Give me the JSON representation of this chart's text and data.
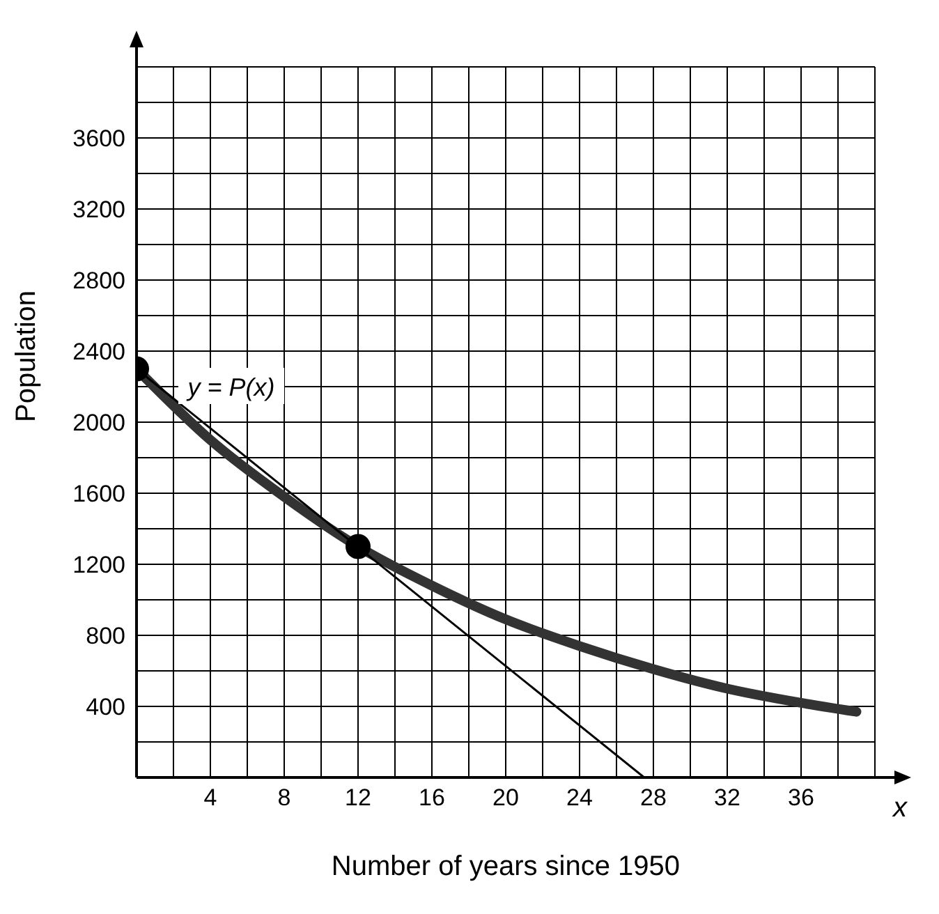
{
  "chart_data": {
    "type": "line",
    "xlabel": "Number of years since 1950",
    "ylabel": "Population",
    "xlim": [
      0,
      40
    ],
    "xticks": [
      {
        "value": 2,
        "label": null
      },
      4,
      {
        "value": 6,
        "label": null
      },
      8,
      {
        "value": 10,
        "label": null
      },
      12,
      {
        "value": 14,
        "label": null
      },
      16,
      {
        "value": 18,
        "label": null
      },
      20,
      {
        "value": 22,
        "label": null
      },
      24,
      {
        "value": 26,
        "label": null
      },
      28,
      {
        "value": 30,
        "label": null
      },
      32,
      {
        "value": 34,
        "label": null
      },
      36,
      {
        "value": 38,
        "label": null
      },
      {
        "value": 40,
        "label": null
      }
    ],
    "ylim": [
      0,
      4000
    ],
    "yticks": [
      {
        "value": 200,
        "label": null
      },
      400,
      {
        "value": 600,
        "label": null
      },
      800,
      {
        "value": 1000,
        "label": null
      },
      1200,
      {
        "value": 1400,
        "label": null
      },
      1600,
      {
        "value": 1800,
        "label": null
      },
      2000,
      {
        "value": 2200,
        "label": null
      },
      2400,
      {
        "value": 2600,
        "label": null
      },
      2800,
      {
        "value": 3000,
        "label": null
      },
      3200,
      {
        "value": 3400,
        "label": null
      },
      3600,
      {
        "value": 3800,
        "label": null
      },
      {
        "value": 4000,
        "label": null
      }
    ],
    "grid": true,
    "series": [
      {
        "color": "#333333",
        "marker": "none",
        "x": [
          0,
          4,
          8,
          12,
          16,
          20,
          24,
          28,
          32,
          36,
          39
        ],
        "values": [
          2300,
          1900,
          1580,
          1300,
          1080,
          890,
          740,
          610,
          500,
          420,
          370
        ]
      },
      {
        "color": "#000000",
        "marker": "none",
        "x": [
          0,
          27.5
        ],
        "values": [
          2300,
          0
        ]
      },
      {
        "type": "scatter",
        "color": "#000000",
        "marker": "circle",
        "x": [
          0,
          12
        ],
        "values": [
          2300,
          1300
        ]
      }
    ],
    "annotations": [
      "y = P(x)",
      "x"
    ]
  }
}
